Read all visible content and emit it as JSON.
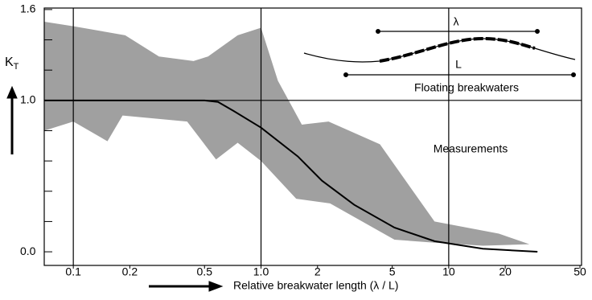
{
  "chart_data": {
    "type": "band-line",
    "x_label": "Relative breakwater length (λ / L)",
    "y_label": "K",
    "y_label_sub": "T",
    "annotations": [
      "λ",
      "L",
      "Floating breakwaters",
      "Measurements"
    ],
    "x_log": true,
    "xlim": [
      0.07,
      51
    ],
    "ylim": [
      -0.09,
      1.61
    ],
    "xticks": [
      0.1,
      0.2,
      0.5,
      {
        "value": 1,
        "label": "1.0"
      },
      2,
      5,
      10,
      20,
      50
    ],
    "yticks": [
      {
        "value": 0,
        "label": "0.0"
      },
      {
        "value": 1,
        "label": "1.0"
      },
      1.6
    ],
    "y_minor_ticks": [
      0.2,
      0.4,
      0.6,
      0.8,
      1.2,
      1.4
    ],
    "x_grid": [
      0.1,
      1,
      10
    ],
    "y_grid": [
      1
    ],
    "band_color": "#a0a0a0",
    "line_color": "#000000",
    "band_upper": {
      "x": [
        0.07,
        0.1,
        0.189,
        0.286,
        0.437,
        0.522,
        0.751,
        1.0,
        1.23,
        1.65,
        2.29,
        4.3,
        8.4,
        18.5,
        26.9
      ],
      "y": [
        1.52,
        1.49,
        1.43,
        1.29,
        1.26,
        1.29,
        1.43,
        1.48,
        1.13,
        0.84,
        0.86,
        0.71,
        0.2,
        0.12,
        0.05
      ]
    },
    "band_lower": {
      "x": [
        0.07,
        0.1,
        0.152,
        0.183,
        0.404,
        0.576,
        0.751,
        1.0,
        1.54,
        2.33,
        5.14,
        8.4,
        15.2,
        26.9
      ],
      "y": [
        0.8,
        0.86,
        0.73,
        0.9,
        0.86,
        0.61,
        0.72,
        0.6,
        0.35,
        0.32,
        0.08,
        0.06,
        0.04,
        0.05
      ]
    },
    "curve": {
      "x": [
        0.07,
        0.5,
        0.59,
        0.715,
        1.0,
        1.57,
        2.11,
        3.14,
        5.14,
        8.4,
        15.2,
        29.7
      ],
      "y": [
        1,
        1,
        0.99,
        0.93,
        0.82,
        0.63,
        0.47,
        0.31,
        0.16,
        0.07,
        0.02,
        0
      ]
    }
  }
}
